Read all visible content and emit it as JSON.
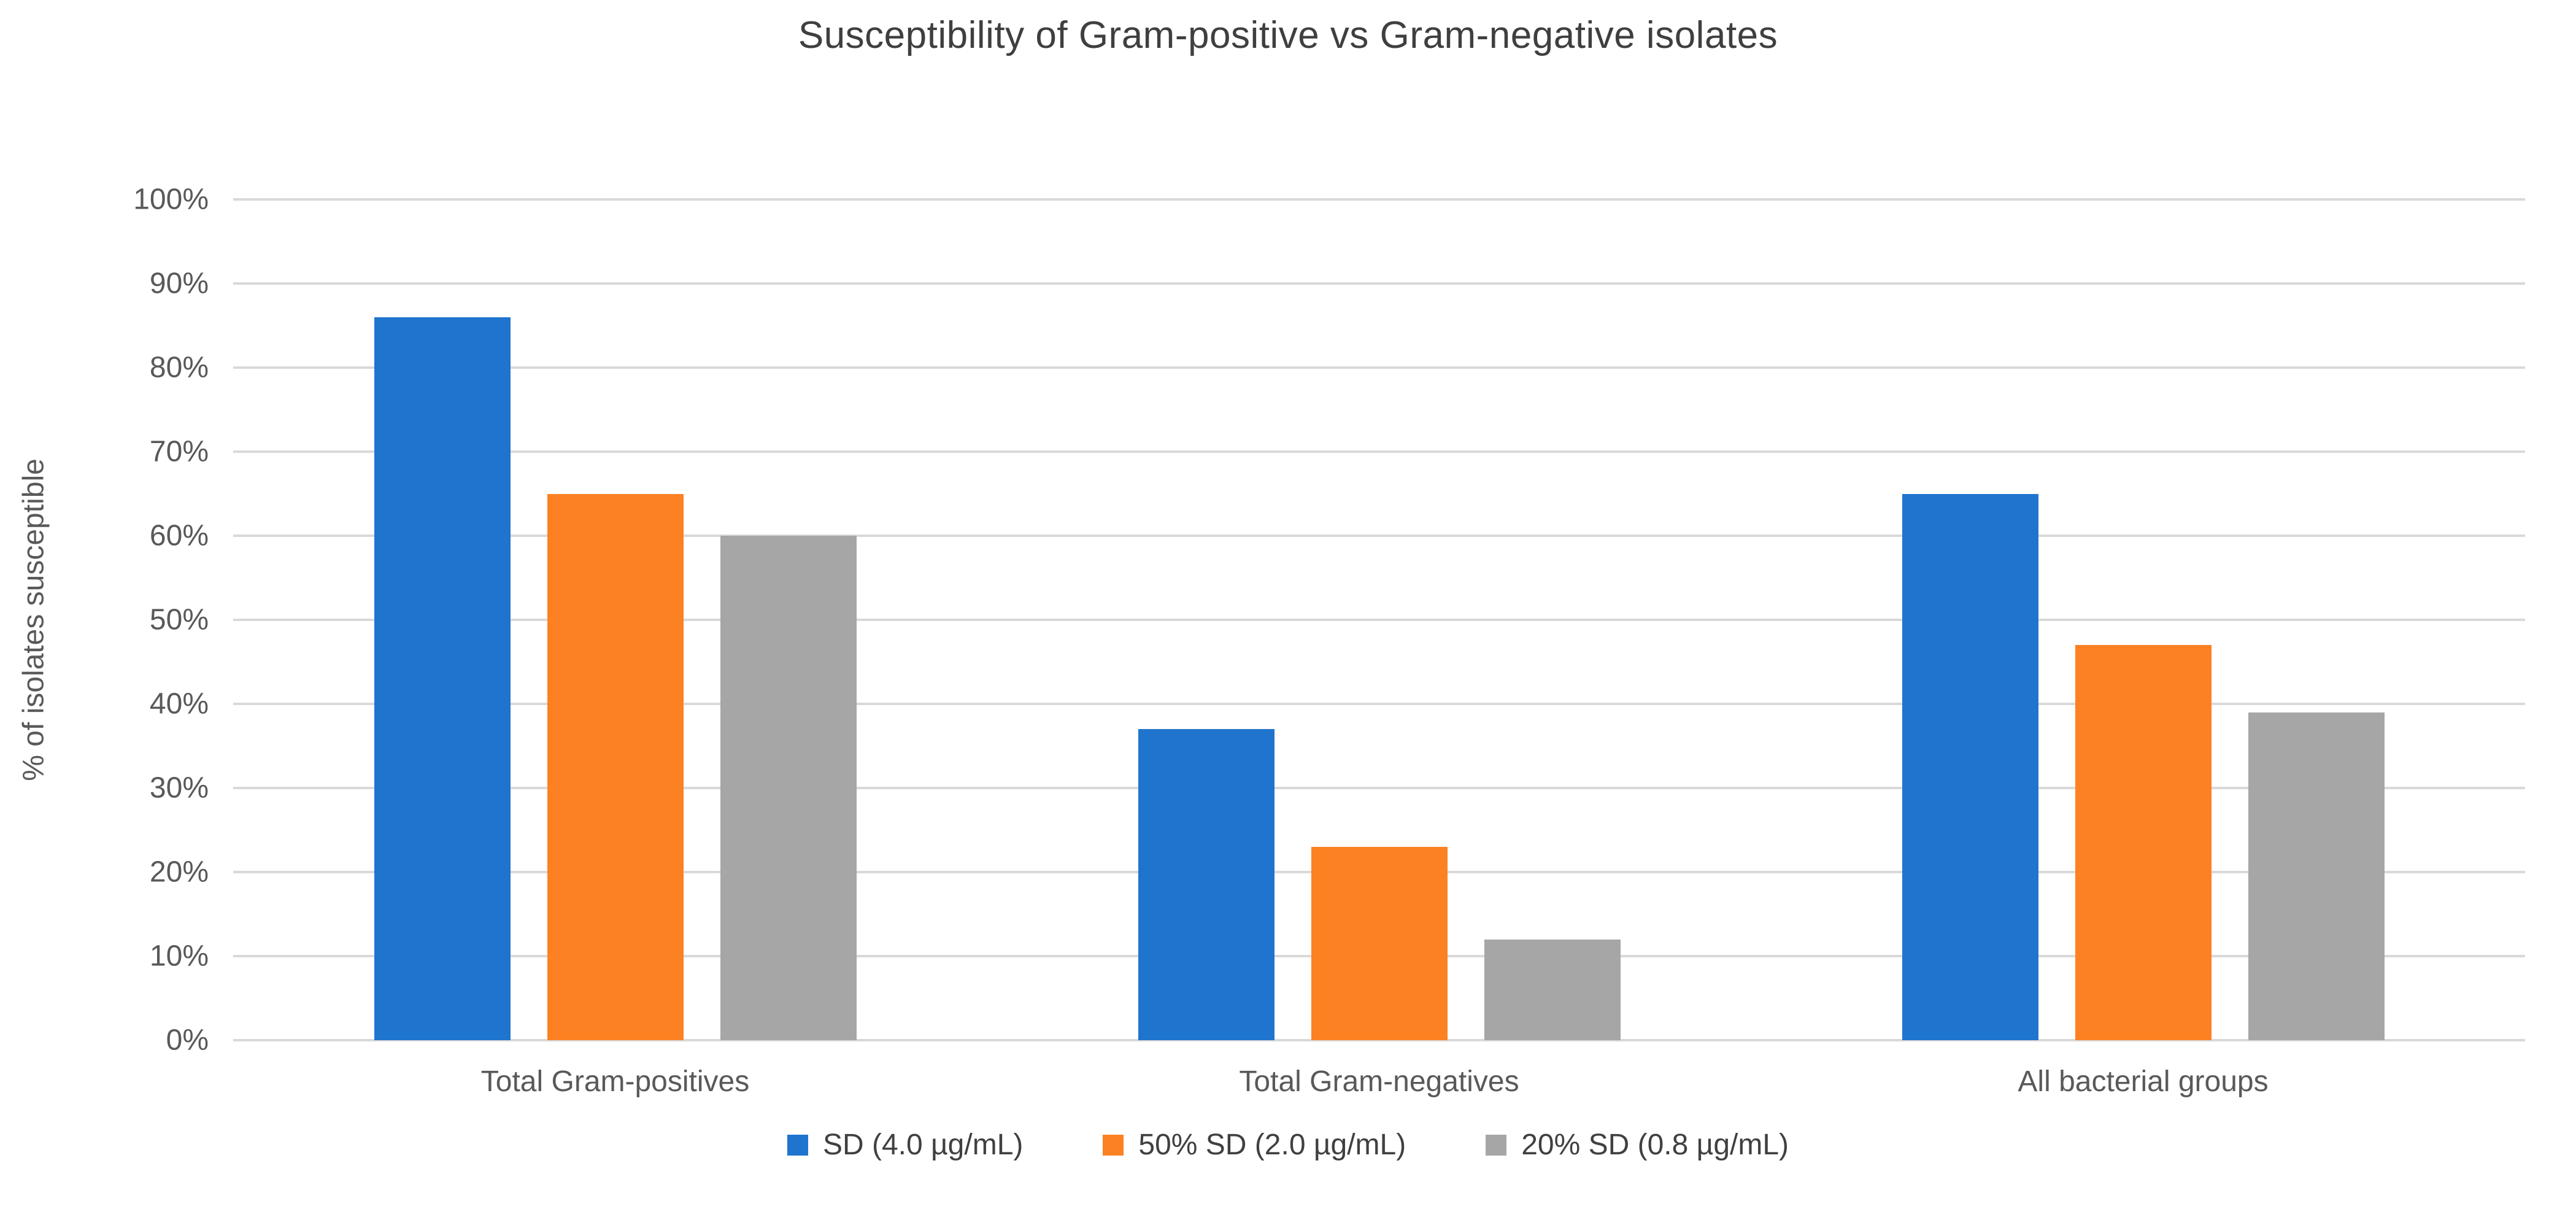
{
  "chart_data": {
    "type": "bar",
    "title": "Susceptibility of Gram-positive vs Gram-negative isolates",
    "ylabel": "% of isolates susceptible",
    "categories": [
      "Total Gram-positives",
      "Total Gram-negatives",
      "All bacterial groups"
    ],
    "series": [
      {
        "name": "SD (4.0 µg/mL)",
        "color": "#1F74CE",
        "values": [
          86,
          37,
          65
        ]
      },
      {
        "name": "50% SD (2.0 µg/mL)",
        "color": "#FC8123",
        "values": [
          65,
          23,
          47
        ]
      },
      {
        "name": "20% SD (0.8 µg/mL)",
        "color": "#A6A6A6",
        "values": [
          60,
          12,
          39
        ]
      }
    ],
    "ylim": [
      0,
      100
    ],
    "yticks": [
      0,
      10,
      20,
      30,
      40,
      50,
      60,
      70,
      80,
      90,
      100
    ],
    "ytick_labels": [
      "0%",
      "10%",
      "20%",
      "30%",
      "40%",
      "50%",
      "60%",
      "70%",
      "80%",
      "90%",
      "100%"
    ],
    "grid": true,
    "legend_position": "bottom"
  },
  "colors": {
    "gridline": "#D9D9D9",
    "title_text": "#3F3F3F",
    "axis_text": "#595959",
    "legend_text": "#404040"
  }
}
